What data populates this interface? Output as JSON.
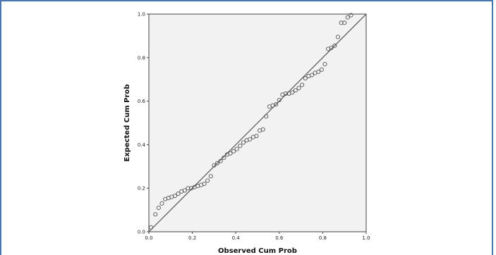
{
  "chart_data": {
    "type": "scatter",
    "title": "",
    "xlabel": "Observed Cum Prob",
    "ylabel": "Expected Cum Prob",
    "xlim": [
      0.0,
      1.0
    ],
    "ylim": [
      0.0,
      1.0
    ],
    "x_ticks": [
      "0.0",
      "0.2",
      "0.4",
      "0.6",
      "0.8",
      "1.0"
    ],
    "y_ticks": [
      "0.0",
      "0.2",
      "0.4",
      "0.6",
      "0.8",
      "1.0"
    ],
    "grid": false,
    "reference_line": {
      "from": [
        0.0,
        0.0
      ],
      "to": [
        1.0,
        1.0
      ]
    },
    "colors": {
      "plot_background": "#f2f2f2",
      "frame_border": "#4a76b0",
      "marker_stroke": "#555555",
      "line": "#555555"
    },
    "points": [
      [
        0.01,
        0.02
      ],
      [
        0.03,
        0.08
      ],
      [
        0.045,
        0.11
      ],
      [
        0.06,
        0.13
      ],
      [
        0.075,
        0.15
      ],
      [
        0.09,
        0.155
      ],
      [
        0.105,
        0.16
      ],
      [
        0.12,
        0.165
      ],
      [
        0.135,
        0.175
      ],
      [
        0.15,
        0.185
      ],
      [
        0.165,
        0.19
      ],
      [
        0.18,
        0.2
      ],
      [
        0.195,
        0.2
      ],
      [
        0.21,
        0.205
      ],
      [
        0.225,
        0.21
      ],
      [
        0.24,
        0.215
      ],
      [
        0.255,
        0.22
      ],
      [
        0.27,
        0.235
      ],
      [
        0.285,
        0.255
      ],
      [
        0.3,
        0.305
      ],
      [
        0.315,
        0.315
      ],
      [
        0.33,
        0.325
      ],
      [
        0.345,
        0.34
      ],
      [
        0.36,
        0.355
      ],
      [
        0.375,
        0.36
      ],
      [
        0.39,
        0.37
      ],
      [
        0.405,
        0.38
      ],
      [
        0.42,
        0.395
      ],
      [
        0.435,
        0.41
      ],
      [
        0.45,
        0.42
      ],
      [
        0.465,
        0.425
      ],
      [
        0.48,
        0.435
      ],
      [
        0.495,
        0.44
      ],
      [
        0.51,
        0.465
      ],
      [
        0.525,
        0.47
      ],
      [
        0.54,
        0.53
      ],
      [
        0.555,
        0.575
      ],
      [
        0.57,
        0.58
      ],
      [
        0.585,
        0.585
      ],
      [
        0.6,
        0.605
      ],
      [
        0.615,
        0.63
      ],
      [
        0.63,
        0.635
      ],
      [
        0.645,
        0.635
      ],
      [
        0.66,
        0.64
      ],
      [
        0.675,
        0.65
      ],
      [
        0.69,
        0.66
      ],
      [
        0.705,
        0.675
      ],
      [
        0.72,
        0.705
      ],
      [
        0.735,
        0.715
      ],
      [
        0.75,
        0.72
      ],
      [
        0.765,
        0.73
      ],
      [
        0.78,
        0.735
      ],
      [
        0.795,
        0.745
      ],
      [
        0.81,
        0.77
      ],
      [
        0.825,
        0.84
      ],
      [
        0.84,
        0.845
      ],
      [
        0.855,
        0.855
      ],
      [
        0.87,
        0.895
      ],
      [
        0.885,
        0.96
      ],
      [
        0.9,
        0.96
      ],
      [
        0.915,
        0.985
      ],
      [
        0.93,
        0.995
      ]
    ]
  }
}
